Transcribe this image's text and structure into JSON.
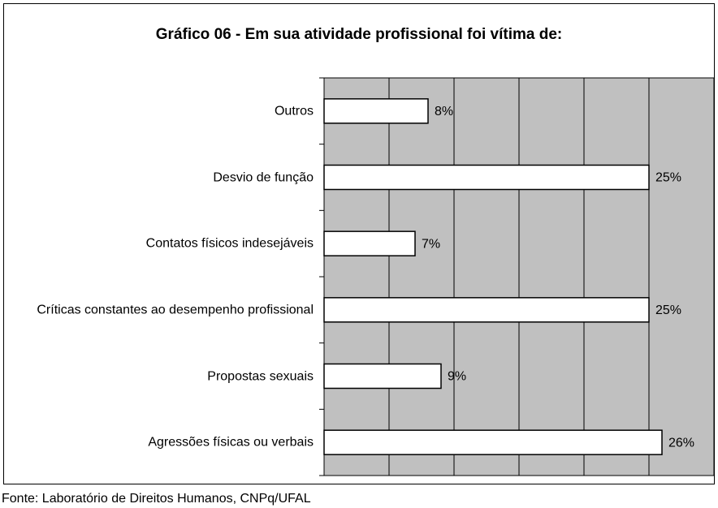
{
  "chart_data": {
    "type": "barh",
    "title": "Gráfico 06 - Em sua atividade profissional foi vítima de:",
    "categories": [
      "Outros",
      "Desvio de função",
      "Contatos físicos indesejáveis",
      "Críticas constantes ao desempenho profissional",
      "Propostas sexuais",
      "Agressões físicas ou verbais"
    ],
    "values": [
      8,
      25,
      7,
      25,
      9,
      26
    ],
    "value_labels": [
      "8%",
      "25%",
      "7%",
      "25%",
      "9%",
      "26%"
    ],
    "color": "#ffffff",
    "plot_background": "#c0c0c0",
    "xlim": [
      0,
      30
    ],
    "xticks": [
      0,
      5,
      10,
      15,
      20,
      25,
      30
    ],
    "grid": true,
    "tick_labels": false,
    "source": "Fonte: Laboratório de Direitos Humanos, CNPq/UFAL"
  }
}
